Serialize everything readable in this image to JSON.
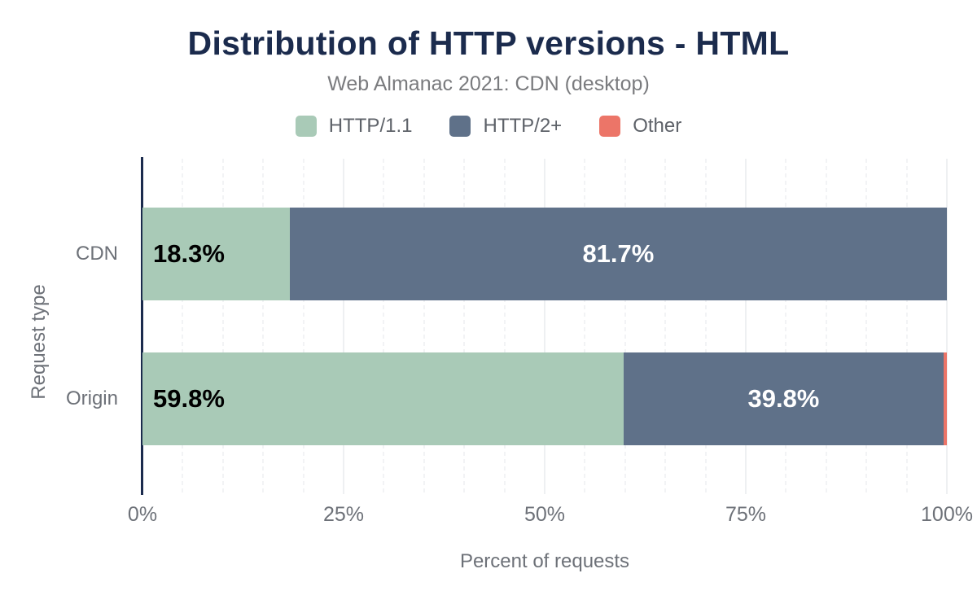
{
  "chart_data": {
    "type": "bar",
    "orientation": "horizontal",
    "stacked": true,
    "title": "Distribution of HTTP versions - HTML",
    "subtitle": "Web Almanac 2021: CDN (desktop)",
    "xlabel": "Percent of requests",
    "ylabel": "Request type",
    "xlim": [
      0,
      100
    ],
    "grid": true,
    "minor_grid_step": 5,
    "major_grid_step": 25,
    "legend_position": "top",
    "categories": [
      "CDN",
      "Origin"
    ],
    "x_ticks": [
      {
        "value": 0,
        "label": "0%"
      },
      {
        "value": 25,
        "label": "25%"
      },
      {
        "value": 50,
        "label": "50%"
      },
      {
        "value": 75,
        "label": "75%"
      },
      {
        "value": 100,
        "label": "100%"
      }
    ],
    "series": [
      {
        "name": "HTTP/1.1",
        "color": "#a9cab7",
        "values": [
          18.3,
          59.8
        ],
        "labels": [
          "18.3%",
          "59.8%"
        ],
        "label_color": "#000000",
        "label_align": "left"
      },
      {
        "name": "HTTP/2+",
        "color": "#5f7189",
        "values": [
          81.7,
          39.8
        ],
        "labels": [
          "81.7%",
          "39.8%"
        ],
        "label_color": "#ffffff",
        "label_align": "center"
      },
      {
        "name": "Other",
        "color": "#ec7568",
        "values": [
          0.0,
          0.4
        ],
        "labels": [
          "",
          ""
        ],
        "label_color": "#ffffff",
        "label_align": "center"
      }
    ]
  },
  "colors": {
    "title_navy": "#1b2b4d",
    "axis_line": "#1b2b4d",
    "tick_gray": "#6d7178",
    "subtitle_gray": "#7a7b7e",
    "legend_gray": "#5e6269",
    "grid_major": "#eef0f2",
    "grid_minor": "#f2f3f5",
    "background": "#ffffff"
  }
}
